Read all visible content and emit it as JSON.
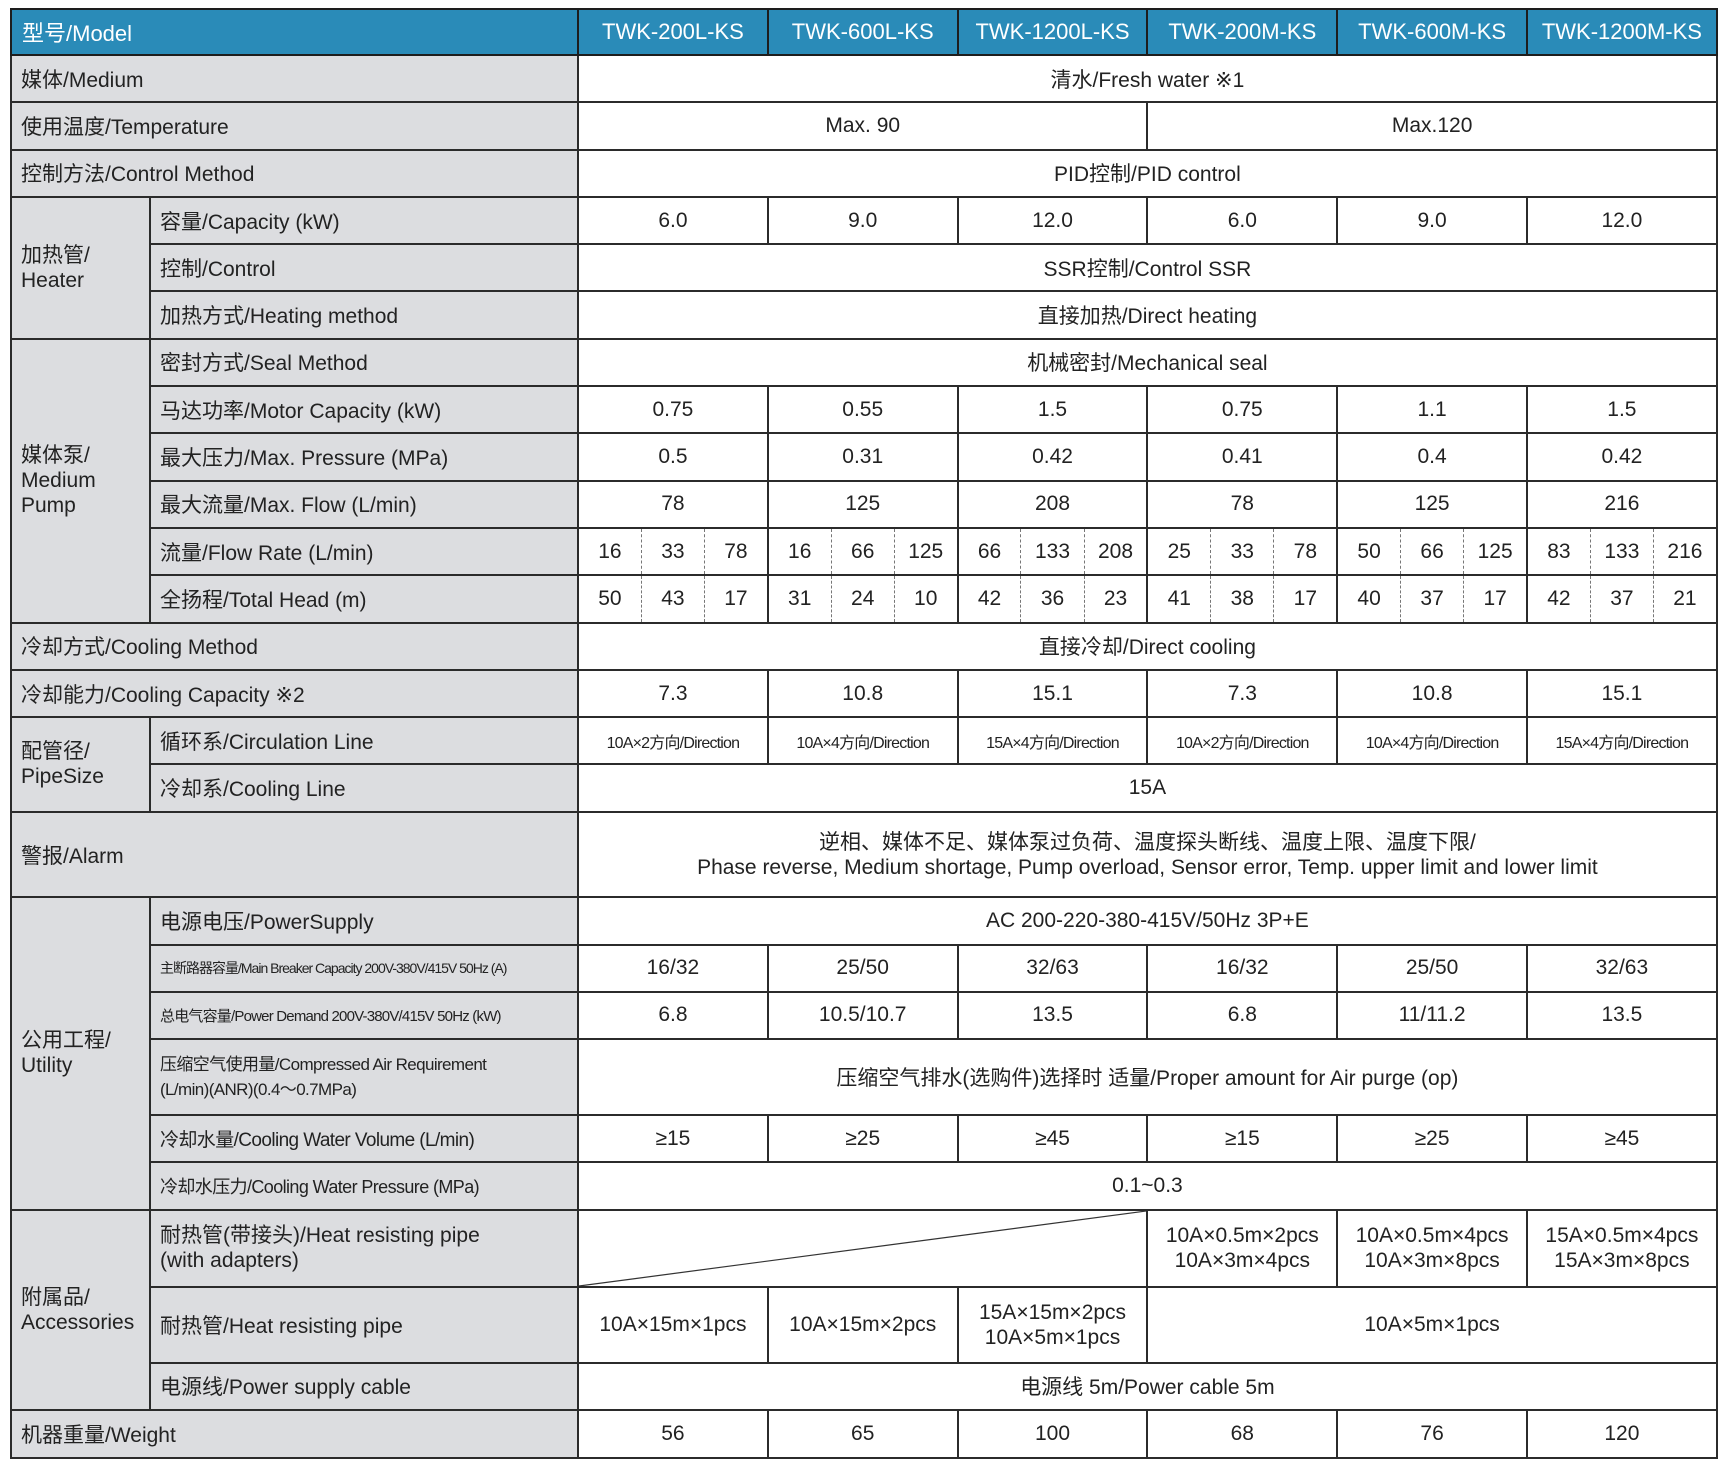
{
  "header": {
    "model_label": "型号/Model",
    "models": [
      "TWK-200L-KS",
      "TWK-600L-KS",
      "TWK-1200L-KS",
      "TWK-200M-KS",
      "TWK-600M-KS",
      "TWK-1200M-KS"
    ]
  },
  "medium": {
    "label": "媒体/Medium",
    "value": "清水/Fresh water ※1"
  },
  "temperature": {
    "label": "使用温度/Temperature",
    "values": [
      "Max. 90",
      "Max.120"
    ]
  },
  "control_method": {
    "label": "控制方法/Control Method",
    "value": "PID控制/PID control"
  },
  "heater": {
    "group_label": "加热管/\nHeater",
    "capacity": {
      "label": "容量/Capacity (kW)",
      "values": [
        "6.0",
        "9.0",
        "12.0",
        "6.0",
        "9.0",
        "12.0"
      ]
    },
    "control": {
      "label": "控制/Control",
      "value": "SSR控制/Control  SSR"
    },
    "heating_method": {
      "label": "加热方式/Heating method",
      "value": "直接加热/Direct heating"
    }
  },
  "pump": {
    "group_label": "媒体泵/\nMedium\nPump",
    "seal": {
      "label": "密封方式/Seal Method",
      "value": "机械密封/Mechanical seal"
    },
    "motor": {
      "label": "马达功率/Motor Capacity  (kW)",
      "values": [
        "0.75",
        "0.55",
        "1.5",
        "0.75",
        "1.1",
        "1.5"
      ]
    },
    "pressure": {
      "label": "最大压力/Max. Pressure (MPa)",
      "values": [
        "0.5",
        "0.31",
        "0.42",
        "0.41",
        "0.4",
        "0.42"
      ]
    },
    "max_flow": {
      "label": "最大流量/Max. Flow (L/min)",
      "values": [
        "78",
        "125",
        "208",
        "78",
        "125",
        "216"
      ]
    },
    "flow_rate": {
      "label": "流量/Flow Rate (L/min)",
      "values": [
        "16",
        "33",
        "78",
        "16",
        "66",
        "125",
        "66",
        "133",
        "208",
        "25",
        "33",
        "78",
        "50",
        "66",
        "125",
        "83",
        "133",
        "216"
      ]
    },
    "total_head": {
      "label": "全扬程/Total Head  (m)",
      "values": [
        "50",
        "43",
        "17",
        "31",
        "24",
        "10",
        "42",
        "36",
        "23",
        "41",
        "38",
        "17",
        "40",
        "37",
        "17",
        "42",
        "37",
        "21"
      ]
    }
  },
  "cooling_method": {
    "label": "冷却方式/Cooling Method",
    "value": "直接冷却/Direct cooling"
  },
  "cooling_capacity": {
    "label": "冷却能力/Cooling Capacity ※2",
    "values": [
      "7.3",
      "10.8",
      "15.1",
      "7.3",
      "10.8",
      "15.1"
    ]
  },
  "pipe": {
    "group_label": "配管径/\nPipeSize",
    "circulation": {
      "label": "循环系/Circulation Line",
      "values": [
        "10A×2方向/Direction",
        "10A×4方向/Direction",
        "15A×4方向/Direction",
        "10A×2方向/Direction",
        "10A×4方向/Direction",
        "15A×4方向/Direction"
      ]
    },
    "cooling_line": {
      "label": "冷却系/Cooling Line",
      "value": "15A"
    }
  },
  "alarm": {
    "label": "警报/Alarm",
    "value": "逆相、媒体不足、媒体泵过负荷、温度探头断线、温度上限、温度下限/\nPhase reverse, Medium shortage, Pump overload, Sensor error, Temp. upper limit and lower limit"
  },
  "utility": {
    "group_label": "公用工程/\nUtility",
    "power_supply": {
      "label": "电源电压/PowerSupply",
      "value": "AC 200-220-380-415V/50Hz 3P+E"
    },
    "main_breaker": {
      "label": "主断路器容量/Main Breaker Capacity 200V-380V/415V 50Hz (A)",
      "values": [
        "16/32",
        "25/50",
        "32/63",
        "16/32",
        "25/50",
        "32/63"
      ]
    },
    "power_demand": {
      "label": "总电气容量/Power Demand 200V-380V/415V 50Hz  (kW)",
      "values": [
        "6.8",
        "10.5/10.7",
        "13.5",
        "6.8",
        "11/11.2",
        "13.5"
      ]
    },
    "compressed_air": {
      "label": "压缩空气使用量/Compressed Air Requirement\n(L/min)(ANR)(0.4～0.7MPa)",
      "value": "压缩空气排水(选购件)选择时  适量/Proper amount for Air purge (op)"
    },
    "cooling_water_volume": {
      "label": "冷却水量/Cooling Water Volume (L/min)",
      "values": [
        "≥15",
        "≥25",
        "≥45",
        "≥15",
        "≥25",
        "≥45"
      ]
    },
    "cooling_water_pressure": {
      "label": "冷却水压力/Cooling Water Pressure (MPa)",
      "value": "0.1~0.3"
    }
  },
  "accessories": {
    "group_label": "附属品/\nAccessories",
    "heat_pipe_adapters": {
      "label": "耐热管(带接头)/Heat resisting pipe\n(with adapters)",
      "values": [
        "10A×0.5m×2pcs\n10A×3m×4pcs",
        "10A×0.5m×4pcs\n10A×3m×8pcs",
        "15A×0.5m×4pcs\n15A×3m×8pcs"
      ]
    },
    "heat_pipe": {
      "label": "耐热管/Heat resisting pipe",
      "values": [
        "10A×15m×1pcs",
        "10A×15m×2pcs",
        "15A×15m×2pcs\n10A×5m×1pcs",
        "10A×5m×1pcs"
      ]
    },
    "power_cable": {
      "label": "电源线/Power supply cable",
      "value": "电源线 5m/Power cable 5m"
    }
  },
  "weight": {
    "label": "机器重量/Weight",
    "values": [
      "56",
      "65",
      "100",
      "68",
      "76",
      "120"
    ]
  },
  "colors": {
    "header_bg": "#2a8bb8",
    "label_bg": "#dcdde0",
    "border": "#2b2b2b"
  }
}
